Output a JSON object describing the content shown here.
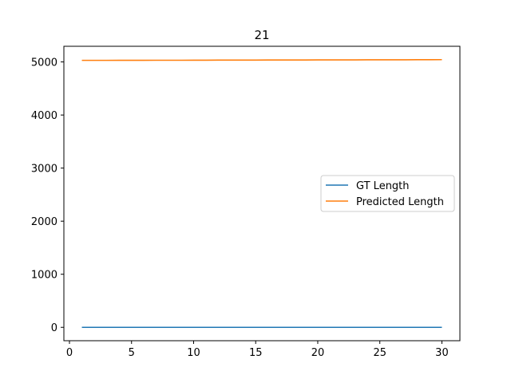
{
  "chart_data": {
    "type": "line",
    "title": "21",
    "xlabel": "",
    "ylabel": "",
    "x": [
      1,
      2,
      3,
      4,
      5,
      6,
      7,
      8,
      9,
      10,
      11,
      12,
      13,
      14,
      15,
      16,
      17,
      18,
      19,
      20,
      21,
      22,
      23,
      24,
      25,
      26,
      27,
      28,
      29,
      30
    ],
    "series": [
      {
        "name": "GT Length",
        "color": "#1f77b4",
        "values": [
          0,
          0,
          0,
          0,
          0,
          0,
          0,
          0,
          0,
          0,
          0,
          0,
          0,
          0,
          0,
          0,
          0,
          0,
          0,
          0,
          0,
          0,
          0,
          0,
          0,
          0,
          0,
          0,
          0,
          0
        ]
      },
      {
        "name": "Predicted Length",
        "color": "#ff7f0e",
        "values": [
          5030,
          5030,
          5030,
          5031,
          5031,
          5031,
          5032,
          5032,
          5032,
          5033,
          5033,
          5034,
          5034,
          5035,
          5035,
          5036,
          5036,
          5037,
          5037,
          5038,
          5038,
          5039,
          5039,
          5040,
          5040,
          5041,
          5041,
          5042,
          5042,
          5043
        ]
      }
    ],
    "xlim": [
      -0.45,
      31.45
    ],
    "ylim": [
      -252,
      5295
    ],
    "xticks": [
      0,
      5,
      10,
      15,
      20,
      25,
      30
    ],
    "yticks": [
      0,
      1000,
      2000,
      3000,
      4000,
      5000
    ],
    "grid": false,
    "legend_position": "center-right"
  }
}
